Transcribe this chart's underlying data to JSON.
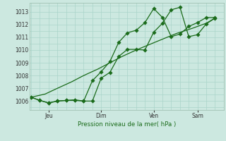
{
  "xlabel": "Pression niveau de la mer( hPa )",
  "background_color": "#cce8e0",
  "grid_color": "#aad4ca",
  "line_color": "#1a6b1a",
  "ylim": [
    1005.3,
    1013.7
  ],
  "yticks": [
    1006,
    1007,
    1008,
    1009,
    1010,
    1011,
    1012,
    1013
  ],
  "x_tick_labels": [
    "Jeu",
    "Dim",
    "Ven",
    "Sam"
  ],
  "x_tick_positions": [
    1.0,
    4.0,
    7.0,
    9.5
  ],
  "xlim": [
    -0.1,
    11.0
  ],
  "line1_x": [
    0.0,
    0.5,
    1.0,
    1.5,
    2.0,
    2.5,
    3.0,
    3.5,
    4.0,
    4.5,
    5.0,
    5.5,
    6.0,
    6.5,
    7.0,
    7.5,
    8.0,
    8.5,
    9.0,
    9.5,
    10.0,
    10.5
  ],
  "line1_y": [
    1006.3,
    1006.05,
    1005.85,
    1006.0,
    1006.05,
    1006.05,
    1006.0,
    1006.0,
    1007.8,
    1008.25,
    1009.5,
    1010.05,
    1010.05,
    1010.0,
    1011.4,
    1012.1,
    1013.15,
    1013.35,
    1011.05,
    1011.2,
    1012.05,
    1012.5
  ],
  "line2_x": [
    0.0,
    0.5,
    1.0,
    1.5,
    2.0,
    2.5,
    3.0,
    3.5,
    4.0,
    4.5,
    5.0,
    5.5,
    6.0,
    6.5,
    7.0,
    7.5,
    8.0,
    8.5,
    9.0,
    9.5,
    10.0,
    10.5
  ],
  "line2_y": [
    1006.3,
    1006.05,
    1005.85,
    1006.0,
    1006.05,
    1006.1,
    1006.0,
    1007.6,
    1008.3,
    1009.1,
    1010.6,
    1011.35,
    1011.55,
    1012.15,
    1013.25,
    1012.55,
    1011.05,
    1011.25,
    1011.85,
    1012.15,
    1012.55,
    1012.55
  ],
  "line3_x": [
    0.0,
    0.8,
    1.5,
    2.3,
    3.0,
    3.8,
    4.5,
    5.2,
    6.0,
    6.7,
    7.5,
    8.3,
    9.2,
    10.0,
    10.5
  ],
  "line3_y": [
    1006.3,
    1006.55,
    1007.0,
    1007.5,
    1008.0,
    1008.5,
    1009.0,
    1009.5,
    1010.0,
    1010.4,
    1010.85,
    1011.3,
    1011.7,
    1012.1,
    1012.5
  ]
}
